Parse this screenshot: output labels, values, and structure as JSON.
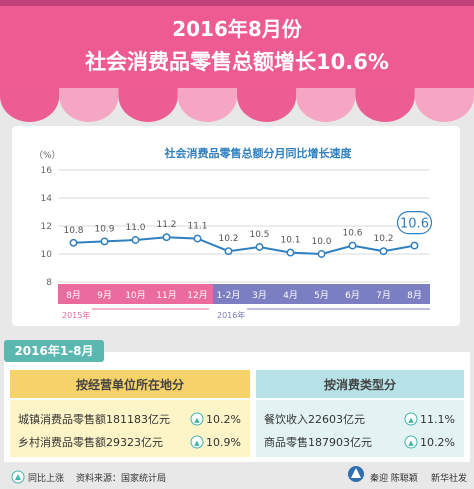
{
  "header": {
    "title_line1": "2016年8月份",
    "title_line2": "社会消费品零售总额增长10.6%"
  },
  "chart_data": {
    "type": "line",
    "title": "社会消费品零售总额分月同比增长速度",
    "yunit": "（%）",
    "ylim": [
      8,
      16
    ],
    "yticks": [
      8,
      10,
      12,
      14,
      16
    ],
    "categories": [
      "8月",
      "9月",
      "10月",
      "11月",
      "12月",
      "1-2月",
      "3月",
      "4月",
      "5月",
      "6月",
      "7月",
      "8月"
    ],
    "values": [
      10.8,
      10.9,
      11.0,
      11.2,
      11.1,
      10.2,
      10.5,
      10.1,
      10.0,
      10.6,
      10.2,
      10.6
    ],
    "year_labels": [
      "2015年",
      "2016年"
    ],
    "highlight_label": "10.6",
    "colors": {
      "line": "#2f7fc1",
      "pink_band": "#ec6b9e",
      "blue_band": "#7b7fc2"
    }
  },
  "summary": {
    "period": "2016年1-8月",
    "left": {
      "heading": "按经营单位所在地分",
      "rows": [
        {
          "label": "城镇消费品零售额181183亿元",
          "badge": "▲",
          "value": "10.2%"
        },
        {
          "label": "乡村消费品零售额29323亿元",
          "badge": "▲",
          "value": "10.9%"
        }
      ]
    },
    "right": {
      "heading": "按消费类型分",
      "rows": [
        {
          "label": "餐饮收入22603亿元",
          "badge": "▲",
          "value": "11.1%"
        },
        {
          "label": "商品零售187903亿元",
          "badge": "▲",
          "value": "10.2%"
        }
      ]
    }
  },
  "footer": {
    "legend_icon": "up-triangle-icon",
    "legend": "同比上涨",
    "source": "资料来源：国家统计局",
    "authors": "秦迎 陈聪颖",
    "agency": "新华社发"
  }
}
